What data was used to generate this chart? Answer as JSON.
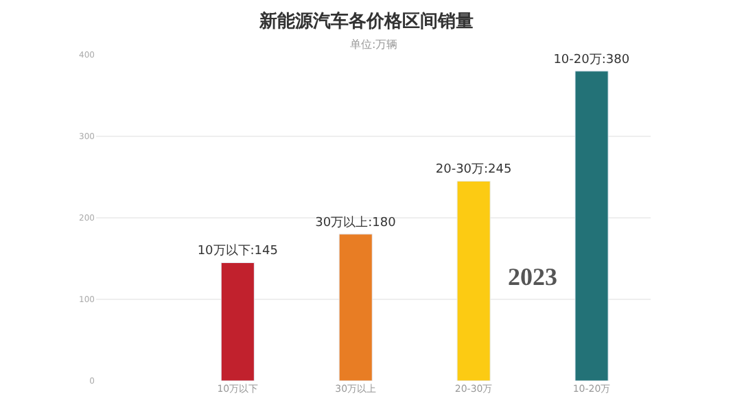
{
  "chart_data": {
    "type": "bar",
    "title": "新能源汽车各价格区间销量",
    "subtitle": "单位:万辆",
    "categories": [
      "10万以下",
      "30万以上",
      "20-30万",
      "10-20万"
    ],
    "values": [
      145,
      180,
      245,
      380
    ],
    "colors": [
      "#c1212d",
      "#e87d24",
      "#fccb13",
      "#237277"
    ],
    "value_labels": [
      "10万以下:145",
      "30万以上:180",
      "20-30万:245",
      "10-20万:380"
    ],
    "annotations": [
      "2023"
    ],
    "ylim": [
      0,
      400
    ],
    "yticks": [
      0,
      100,
      200,
      300,
      400
    ],
    "grid": "y",
    "legend": false
  }
}
